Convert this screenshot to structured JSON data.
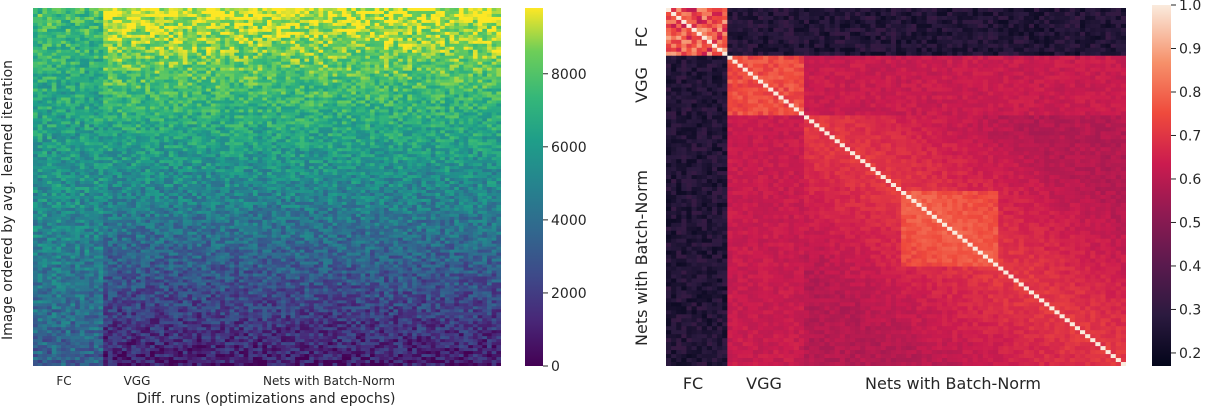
{
  "chart_data": [
    {
      "type": "heatmap",
      "description_role": "left",
      "xlabel": "Diff. runs (optimizations and epochs)",
      "ylabel": "Image ordered by avg. learned iteration",
      "x_groups": [
        "FC",
        "VGG",
        "Nets with Batch-Norm"
      ],
      "colormap": "viridis",
      "colorbar": {
        "range": [
          0,
          9800
        ],
        "ticks": [
          0,
          2000,
          4000,
          6000,
          8000
        ],
        "tick_labels": [
          "0",
          "2000",
          "4000",
          "6000",
          "8000"
        ]
      }
    },
    {
      "type": "heatmap",
      "description_role": "right",
      "x_groups": [
        "FC",
        "VGG",
        "Nets with Batch-Norm"
      ],
      "y_groups": [
        "FC",
        "VGG",
        "Nets with Batch-Norm"
      ],
      "colormap": "rocket",
      "colorbar": {
        "range": [
          0.17,
          1.0
        ],
        "ticks": [
          0.2,
          0.3,
          0.4,
          0.5,
          0.6,
          0.7,
          0.8,
          0.9,
          1.0
        ],
        "tick_labels": [
          "0.2",
          "0.3",
          "0.4",
          "0.5",
          "0.6",
          "0.7",
          "0.8",
          "0.9",
          "1.0"
        ]
      }
    }
  ]
}
